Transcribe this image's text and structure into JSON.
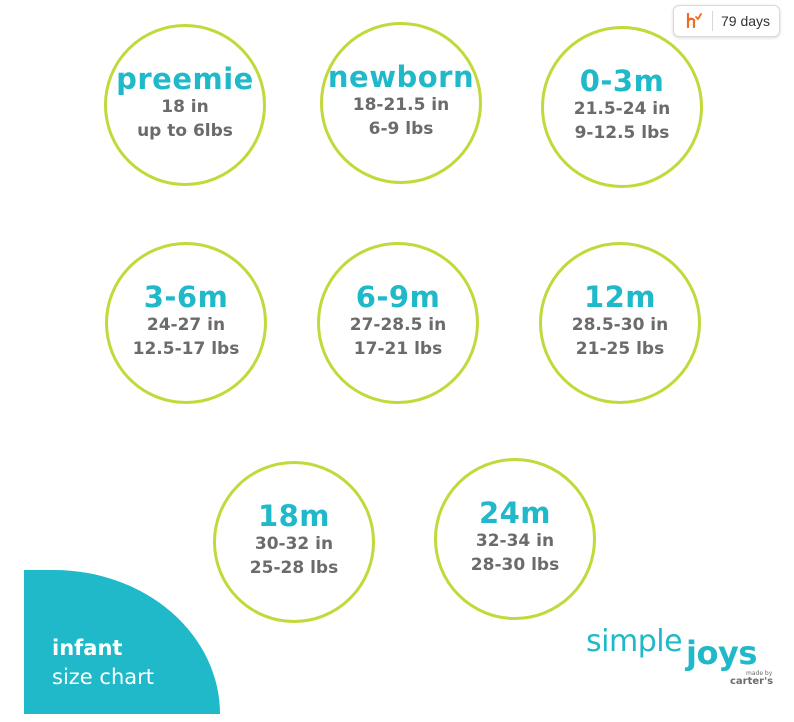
{
  "extension_badge": {
    "text": "79 days",
    "icon": "honey-logo-icon"
  },
  "sizes": [
    {
      "name": "preemie",
      "length": "18 in",
      "weight": "up to 6lbs"
    },
    {
      "name": "newborn",
      "length": "18-21.5 in",
      "weight": "6-9 lbs"
    },
    {
      "name": "0-3m",
      "length": "21.5-24 in",
      "weight": "9-12.5 lbs"
    },
    {
      "name": "3-6m",
      "length": "24-27 in",
      "weight": "12.5-17 lbs"
    },
    {
      "name": "6-9m",
      "length": "27-28.5 in",
      "weight": "17-21 lbs"
    },
    {
      "name": "12m",
      "length": "28.5-30 in",
      "weight": "21-25 lbs"
    },
    {
      "name": "18m",
      "length": "30-32 in",
      "weight": "25-28 lbs"
    },
    {
      "name": "24m",
      "length": "32-34 in",
      "weight": "28-30 lbs"
    }
  ],
  "corner": {
    "title": "infant",
    "subtitle": "size chart"
  },
  "brand": {
    "simple": "simple",
    "joys": "joys",
    "made_by": "made by",
    "carters": "carter's"
  },
  "colors": {
    "accent": "#1fb9c9",
    "ring": "#c3d83a",
    "text": "#6b6b6b",
    "badge_icon": "#f26a21"
  }
}
